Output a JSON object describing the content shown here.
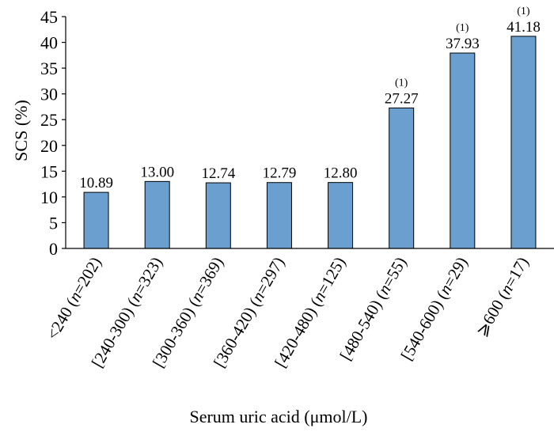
{
  "chart_data": {
    "type": "bar",
    "categories": [
      "<240 (",
      "[240-300) (",
      "[300-360) (",
      "[360-420) (",
      "[420-480) (",
      "[480-540) (",
      "[540-600) (",
      "⩾600 ("
    ],
    "category_n": [
      "=202)",
      "=323)",
      "=369)",
      "=297)",
      "=125)",
      "=55)",
      "=29)",
      "=17)"
    ],
    "n_symbol": "n",
    "values": [
      10.89,
      13.0,
      12.74,
      12.79,
      12.8,
      27.27,
      37.93,
      41.18
    ],
    "value_labels": [
      "10.89",
      "13.00",
      "12.74",
      "12.79",
      "12.80",
      "27.27",
      "37.93",
      "41.18"
    ],
    "annotations": [
      "",
      "",
      "",
      "",
      "",
      "(1)",
      "(1)",
      "(1)"
    ],
    "ylabel": "SCS (%)",
    "xlabel": "Serum uric acid (μmol/L)",
    "ylim": [
      0,
      45
    ],
    "yticks": [
      "0",
      "5",
      "10",
      "15",
      "20",
      "25",
      "30",
      "35",
      "40",
      "45"
    ],
    "bar_color": "#6a9fd0",
    "bar_edge_color": "#000000",
    "grid": false,
    "legend": "none"
  }
}
